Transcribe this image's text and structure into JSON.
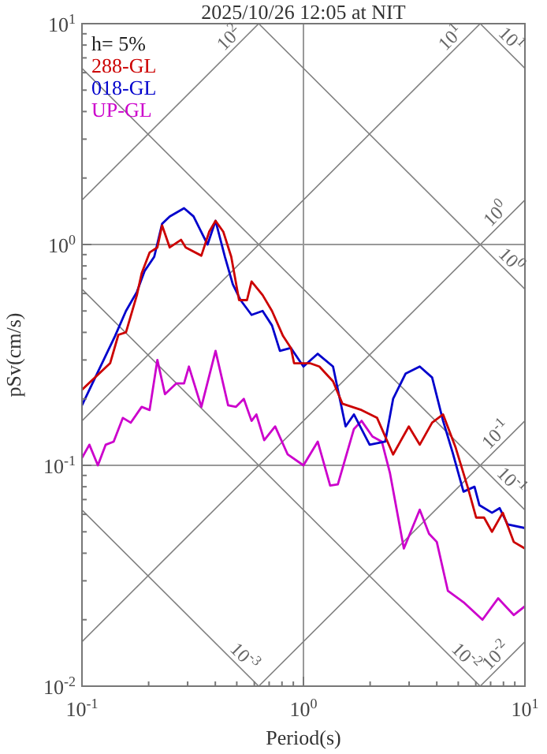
{
  "chart_data": {
    "type": "line",
    "title": "2025/10/26 12:05 at NIT",
    "xlabel": "Period(s)",
    "ylabel": "pSv(cm/s)",
    "log": "xy",
    "grid": true,
    "legend": "top left",
    "marker": "none",
    "line_style": "solid",
    "xlim": [
      0.1,
      10
    ],
    "ylim": [
      0.01,
      10
    ],
    "xticks": [
      {
        "value": 0.1,
        "label": "10$^{-1}$"
      },
      {
        "value": 0.2,
        "label": null
      },
      {
        "value": 0.3,
        "label": null
      },
      {
        "value": 0.4,
        "label": null
      },
      {
        "value": 0.5,
        "label": null
      },
      {
        "value": 0.6,
        "label": null
      },
      {
        "value": 0.7,
        "label": null
      },
      {
        "value": 0.8,
        "label": null
      },
      {
        "value": 0.9,
        "label": null
      },
      {
        "value": 1,
        "label": "10$^{0}$"
      },
      {
        "value": 2,
        "label": null
      },
      {
        "value": 3,
        "label": null
      },
      {
        "value": 4,
        "label": null
      },
      {
        "value": 5,
        "label": null
      },
      {
        "value": 6,
        "label": null
      },
      {
        "value": 7,
        "label": null
      },
      {
        "value": 8,
        "label": null
      },
      {
        "value": 9,
        "label": null
      },
      {
        "value": 10,
        "label": "10$^{1}$"
      }
    ],
    "yticks": [
      {
        "value": 0.01,
        "label": "10$^{-2}$"
      },
      {
        "value": 0.02,
        "label": null
      },
      {
        "value": 0.03,
        "label": null
      },
      {
        "value": 0.04,
        "label": null
      },
      {
        "value": 0.05,
        "label": null
      },
      {
        "value": 0.06,
        "label": null
      },
      {
        "value": 0.07,
        "label": null
      },
      {
        "value": 0.08,
        "label": null
      },
      {
        "value": 0.09,
        "label": null
      },
      {
        "value": 0.1,
        "label": "10$^{-1}$"
      },
      {
        "value": 0.2,
        "label": null
      },
      {
        "value": 0.3,
        "label": null
      },
      {
        "value": 0.4,
        "label": null
      },
      {
        "value": 0.5,
        "label": null
      },
      {
        "value": 0.6,
        "label": null
      },
      {
        "value": 0.7,
        "label": null
      },
      {
        "value": 0.8,
        "label": null
      },
      {
        "value": 0.9,
        "label": null
      },
      {
        "value": 1,
        "label": "10$^{0}$"
      },
      {
        "value": 2,
        "label": null
      },
      {
        "value": 3,
        "label": null
      },
      {
        "value": 4,
        "label": null
      },
      {
        "value": 5,
        "label": null
      },
      {
        "value": 6,
        "label": null
      },
      {
        "value": 7,
        "label": null
      },
      {
        "value": 8,
        "label": null
      },
      {
        "value": 9,
        "label": null
      },
      {
        "value": 10,
        "label": "10$^{1}$"
      }
    ],
    "series": [
      {
        "name": "288-GL",
        "color": "#cc0000",
        "type": "line",
        "x": [
          0.1,
          0.134,
          0.146,
          0.158,
          0.177,
          0.186,
          0.202,
          0.219,
          0.23,
          0.249,
          0.28,
          0.294,
          0.346,
          0.375,
          0.401,
          0.435,
          0.472,
          0.512,
          0.556,
          0.583,
          0.654,
          0.721,
          0.809,
          0.878,
          0.907,
          1.07,
          1.18,
          1.36,
          1.5,
          1.83,
          2.15,
          2.54,
          2.99,
          3.35,
          3.81,
          4.27,
          4.87,
          5.55,
          6.02,
          6.54,
          7.1,
          7.94,
          8.9,
          10
        ],
        "values": [
          0.22,
          0.29,
          0.39,
          0.4,
          0.59,
          0.74,
          0.92,
          0.97,
          1.22,
          0.97,
          1.05,
          0.97,
          0.89,
          1.14,
          1.28,
          1.14,
          0.88,
          0.56,
          0.56,
          0.68,
          0.59,
          0.5,
          0.385,
          0.34,
          0.29,
          0.29,
          0.28,
          0.24,
          0.19,
          0.178,
          0.164,
          0.112,
          0.15,
          0.124,
          0.156,
          0.17,
          0.12,
          0.078,
          0.058,
          0.058,
          0.05,
          0.061,
          0.045,
          0.042
        ]
      },
      {
        "name": "018-GL",
        "color": "#0000cc",
        "type": "line",
        "x": [
          0.1,
          0.141,
          0.158,
          0.177,
          0.192,
          0.212,
          0.23,
          0.249,
          0.289,
          0.319,
          0.369,
          0.401,
          0.442,
          0.48,
          0.52,
          0.583,
          0.654,
          0.721,
          0.783,
          0.878,
          1.0,
          1.16,
          1.36,
          1.55,
          1.69,
          1.99,
          2.34,
          2.54,
          2.89,
          3.35,
          3.81,
          4.27,
          4.72,
          5.28,
          5.92,
          6.23,
          7.1,
          7.69,
          8.35,
          10
        ],
        "values": [
          0.187,
          0.385,
          0.5,
          0.61,
          0.76,
          0.88,
          1.24,
          1.34,
          1.46,
          1.34,
          1.0,
          1.28,
          0.88,
          0.66,
          0.56,
          0.48,
          0.5,
          0.43,
          0.33,
          0.34,
          0.28,
          0.32,
          0.28,
          0.15,
          0.17,
          0.124,
          0.128,
          0.2,
          0.26,
          0.28,
          0.25,
          0.159,
          0.114,
          0.076,
          0.08,
          0.066,
          0.061,
          0.064,
          0.054,
          0.052
        ]
      },
      {
        "name": "UP-GL",
        "color": "#cc00cc",
        "type": "line",
        "x": [
          0.1,
          0.108,
          0.118,
          0.128,
          0.139,
          0.153,
          0.166,
          0.186,
          0.202,
          0.219,
          0.237,
          0.267,
          0.289,
          0.304,
          0.346,
          0.401,
          0.457,
          0.496,
          0.538,
          0.583,
          0.613,
          0.665,
          0.745,
          0.849,
          1.0,
          1.16,
          1.32,
          1.43,
          1.69,
          1.83,
          2.05,
          2.26,
          2.46,
          2.84,
          3.35,
          3.69,
          4.0,
          4.49,
          5.28,
          6.43,
          7.57,
          8.9,
          10
        ],
        "values": [
          0.108,
          0.124,
          0.1,
          0.124,
          0.128,
          0.164,
          0.156,
          0.184,
          0.178,
          0.3,
          0.21,
          0.235,
          0.235,
          0.28,
          0.184,
          0.33,
          0.187,
          0.184,
          0.2,
          0.159,
          0.17,
          0.13,
          0.15,
          0.112,
          0.1,
          0.128,
          0.081,
          0.082,
          0.146,
          0.159,
          0.135,
          0.128,
          0.092,
          0.042,
          0.063,
          0.049,
          0.045,
          0.027,
          0.024,
          0.02,
          0.025,
          0.021,
          0.023
        ]
      },
      {
        "color": "#808080",
        "type": "line",
        "x": [
          0.1,
          0.628
        ],
        "values": [
          1.59,
          10
        ]
      },
      {
        "color": "#808080",
        "type": "line",
        "x": [
          0.1,
          6.28
        ],
        "values": [
          0.159,
          10
        ]
      },
      {
        "color": "#808080",
        "type": "line",
        "x": [
          0.1,
          10
        ],
        "values": [
          0.0159,
          1.59
        ]
      },
      {
        "color": "#808080",
        "type": "line",
        "x": [
          0.628,
          10
        ],
        "values": [
          0.01,
          0.159
        ]
      },
      {
        "color": "#808080",
        "type": "line",
        "x": [
          6.28,
          10
        ],
        "values": [
          0.01,
          0.0159
        ]
      },
      {
        "color": "#808080",
        "type": "line",
        "x": [
          6.28,
          10
        ],
        "values": [
          10,
          6.28
        ]
      },
      {
        "color": "#808080",
        "type": "line",
        "x": [
          0.628,
          10
        ],
        "values": [
          10,
          0.628
        ]
      },
      {
        "color": "#808080",
        "type": "line",
        "x": [
          0.1,
          10
        ],
        "values": [
          6.28,
          0.0628
        ]
      },
      {
        "color": "#808080",
        "type": "line",
        "x": [
          0.1,
          6.28
        ],
        "values": [
          0.628,
          0.01
        ]
      },
      {
        "color": "#808080",
        "type": "line",
        "x": [
          0.1,
          0.628
        ],
        "values": [
          0.0628,
          0.01
        ]
      }
    ],
    "annotations": [
      "h= 5%",
      {
        "text": "10$^{2}$",
        "x": 0.5,
        "y": 7.96
      },
      {
        "text": "10$^{1}$",
        "x": 5,
        "y": 7.96
      },
      {
        "text": "10$^{0}$",
        "x": 8,
        "y": 1.27
      },
      {
        "text": "10$^{-1}$",
        "x": 8,
        "y": 0.127
      },
      {
        "text": "10$^{-2}$",
        "x": 8,
        "y": 0.0127
      },
      {
        "text": "10$^{1}$",
        "x": 8,
        "y": 7.85
      },
      {
        "text": "10$^{0}$",
        "x": 8,
        "y": 0.785
      },
      {
        "text": "10$^{-1}$",
        "x": 8,
        "y": 0.0785
      },
      {
        "text": "10$^{-2}$",
        "x": 5,
        "y": 0.01256
      },
      {
        "text": "10$^{-3}$",
        "x": 0.5,
        "y": 0.01256
      }
    ]
  }
}
